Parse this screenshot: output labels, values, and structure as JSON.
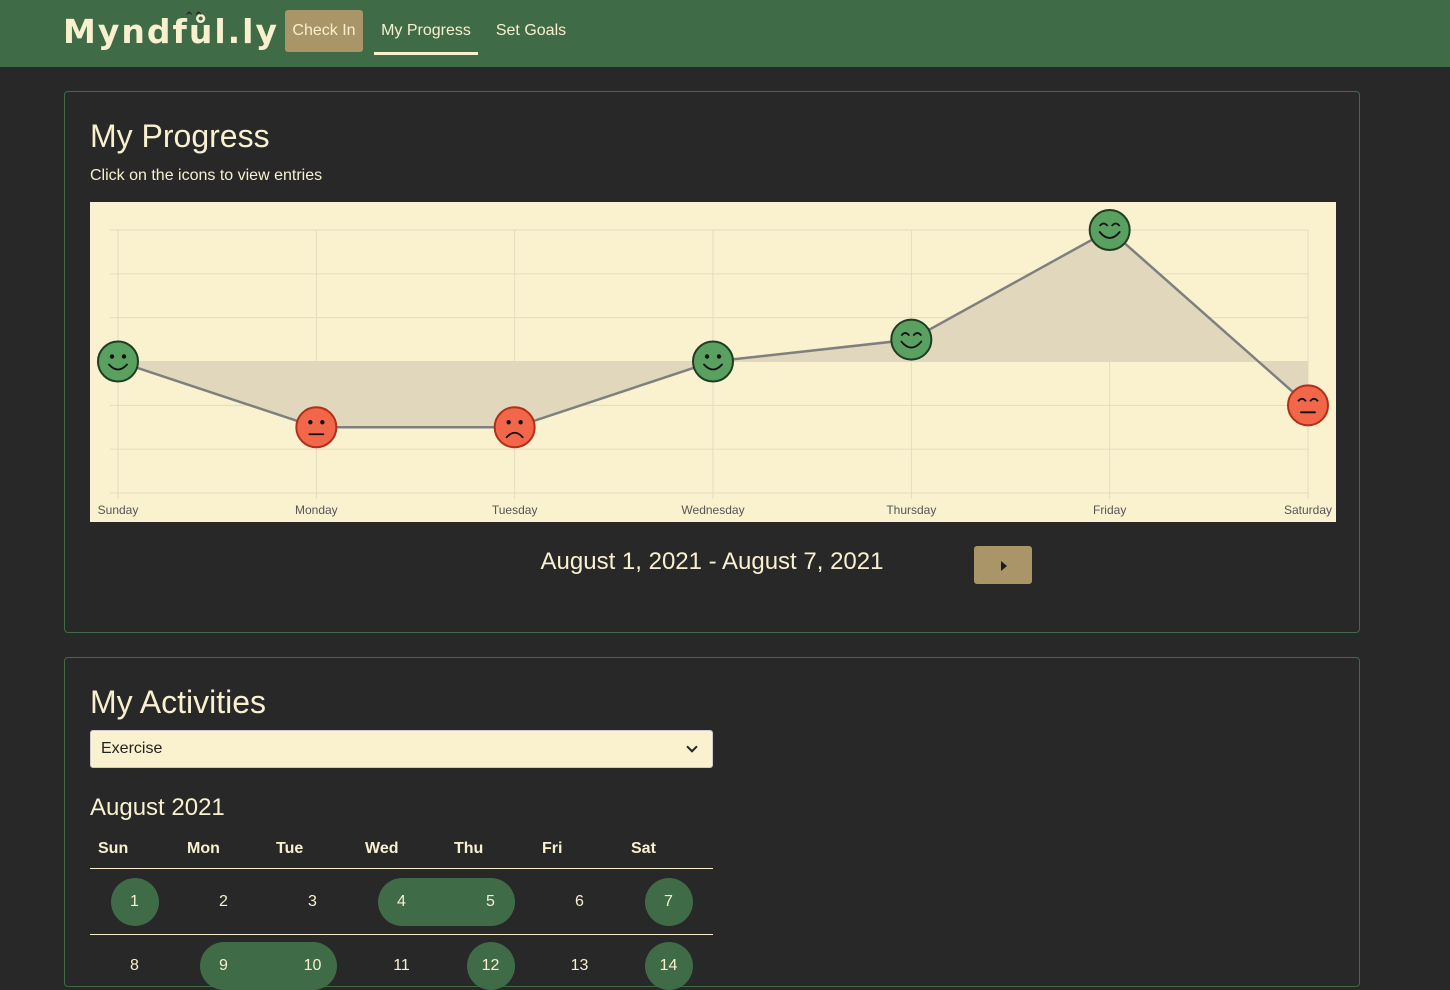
{
  "navbar": {
    "brand": "Myndfůl.ly",
    "brand_eyes": "^^",
    "links": [
      {
        "label": "Check In"
      },
      {
        "label": "My Progress"
      },
      {
        "label": "Set Goals"
      }
    ]
  },
  "progress": {
    "title": "My Progress",
    "subtitle": "Click on the icons to view entries",
    "date_range": "August 1, 2021 - August 7, 2021",
    "next_icon": "play-right-icon"
  },
  "chart_data": {
    "type": "area",
    "x": [
      "Sunday",
      "Monday",
      "Tuesday",
      "Wednesday",
      "Thursday",
      "Friday",
      "Saturday"
    ],
    "y": [
      3,
      1.5,
      1.5,
      3,
      3.5,
      6,
      2
    ],
    "markers": [
      "smile",
      "neutral",
      "sad",
      "smile",
      "happy",
      "happy",
      "meh"
    ],
    "marker_colors": {
      "positive": "#5aa060",
      "negative": "#f26649"
    },
    "area_color": "#e0d7bd",
    "line_color": "#7f7f7f",
    "background": "#faf2cf",
    "ylim": [
      0,
      6
    ],
    "grid": true,
    "baseline": 3
  },
  "activities": {
    "title": "My Activities",
    "select_value": "Exercise",
    "month": "August 2021",
    "weekdays": [
      "Sun",
      "Mon",
      "Tue",
      "Wed",
      "Thu",
      "Fri",
      "Sat"
    ],
    "week1": [
      "1",
      "2",
      "3",
      "4",
      "5",
      "6",
      "7"
    ],
    "week2": [
      "8",
      "9",
      "10",
      "11",
      "12",
      "13",
      "14"
    ],
    "active_days": [
      1,
      4,
      5,
      7,
      9,
      10,
      12,
      14
    ]
  }
}
